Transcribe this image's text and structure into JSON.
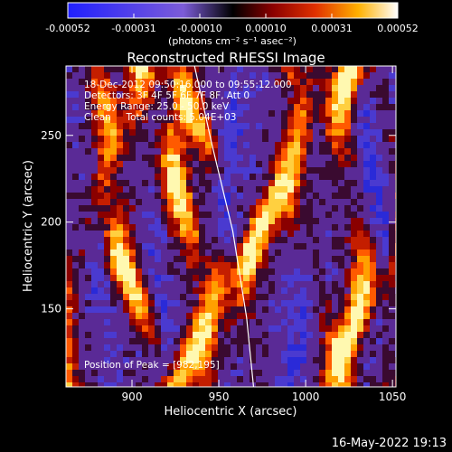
{
  "colorbar": {
    "ticks": [
      "-0.00052",
      "-0.00031",
      "-0.00010",
      "0.00010",
      "0.00031",
      "0.00052"
    ],
    "units_label": "(photons cm⁻² s⁻¹ asec⁻²)"
  },
  "plot": {
    "title": "Reconstructed RHESSI Image",
    "info_lines": [
      "18-Dec-2012 09:50:16.000 to 09:55:12.000",
      "Detectors: 3F 4F 5F 6F 7F 8F, Att 0",
      "Energy Range: 25.0 - 50.0 keV",
      "Clean     Total counts: 5.04E+03"
    ],
    "peak_label": "Position of Peak = [982,195]"
  },
  "chart_data": {
    "type": "heatmap",
    "title": "Reconstructed RHESSI Image",
    "xlabel": "Heliocentric X (arcsec)",
    "ylabel": "Heliocentric Y (arcsec)",
    "xlim": [
      862,
      1052
    ],
    "ylim": [
      105,
      290
    ],
    "x_ticks": [
      900,
      950,
      1000,
      1050
    ],
    "y_ticks": [
      150,
      200,
      250
    ],
    "color_range": [
      -0.00052,
      0.00052
    ],
    "peak_position": [
      982,
      195
    ],
    "limb_curve": [
      [
        936,
        290
      ],
      [
        946,
        245
      ],
      [
        958,
        195
      ],
      [
        966,
        145
      ],
      [
        970,
        105
      ]
    ]
  },
  "footer": {
    "date": "16-May-2022 19:13"
  }
}
